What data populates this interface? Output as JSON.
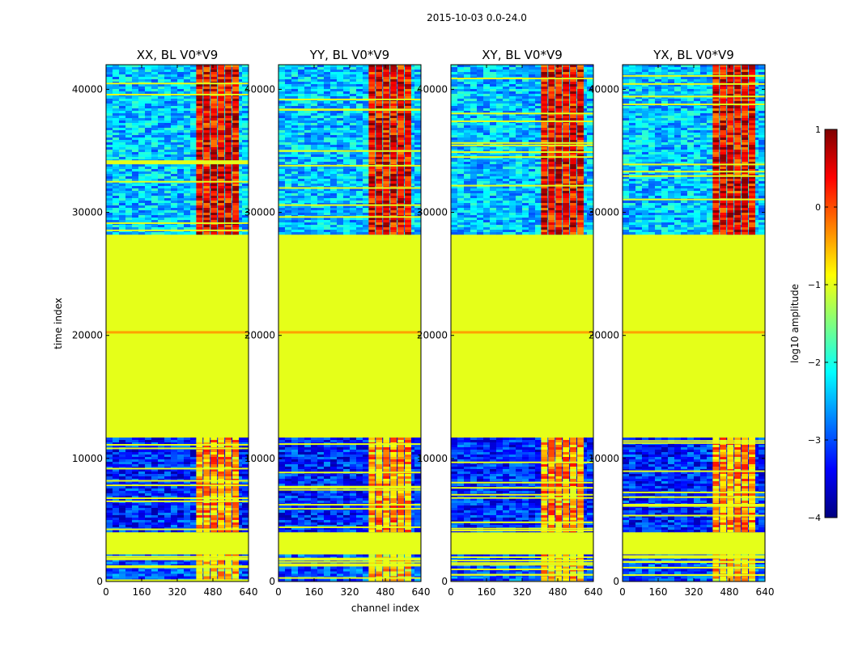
{
  "chart_data": {
    "type": "heatmap",
    "suptitle": "2015-10-03 0.0-24.0",
    "xlabel": "channel index",
    "ylabel": "time index",
    "xlim": [
      0,
      640
    ],
    "ylim": [
      0,
      42000
    ],
    "x_ticks": [
      0,
      160,
      320,
      480,
      640
    ],
    "y_ticks": [
      0,
      10000,
      20000,
      30000,
      40000
    ],
    "colorbar": {
      "label": "log10 amplitude",
      "range": [
        -4,
        1
      ],
      "ticks": [
        1,
        0,
        -1,
        -2,
        -3,
        -4
      ],
      "tick_labels": [
        "1",
        "0",
        "−1",
        "−2",
        "−3",
        "−4"
      ],
      "colormap": "jet",
      "colors": [
        "#00007f",
        "#0000ff",
        "#007fff",
        "#00ffff",
        "#7fff7f",
        "#ffff00",
        "#ff7f00",
        "#ff0000",
        "#7f0000"
      ]
    },
    "panels": [
      {
        "title": "XX, BL V0*V9",
        "product": "XX"
      },
      {
        "title": "YY, BL V0*V9",
        "product": "YY"
      },
      {
        "title": "XY, BL V0*V9",
        "product": "XY"
      },
      {
        "title": "YX, BL V0*V9",
        "product": "YX"
      }
    ],
    "regions": [
      {
        "t_start": 0,
        "t_end": 2200,
        "background_log10": -3.0,
        "rfi_log10": -0.6
      },
      {
        "t_start": 2200,
        "t_end": 4200,
        "background_log10": -1.0,
        "rfi_log10": -1.0
      },
      {
        "t_start": 4200,
        "t_end": 11700,
        "background_log10": -3.2,
        "rfi_log10": -0.4
      },
      {
        "t_start": 11700,
        "t_end": 28300,
        "background_log10": -1.0,
        "rfi_log10": -1.0
      },
      {
        "t_start": 28300,
        "t_end": 42000,
        "background_log10": -2.4,
        "rfi_log10": 0.4
      }
    ],
    "rfi_band_channels": [
      405,
      600
    ],
    "flag_lines_time": [
      20200,
      20300
    ]
  }
}
